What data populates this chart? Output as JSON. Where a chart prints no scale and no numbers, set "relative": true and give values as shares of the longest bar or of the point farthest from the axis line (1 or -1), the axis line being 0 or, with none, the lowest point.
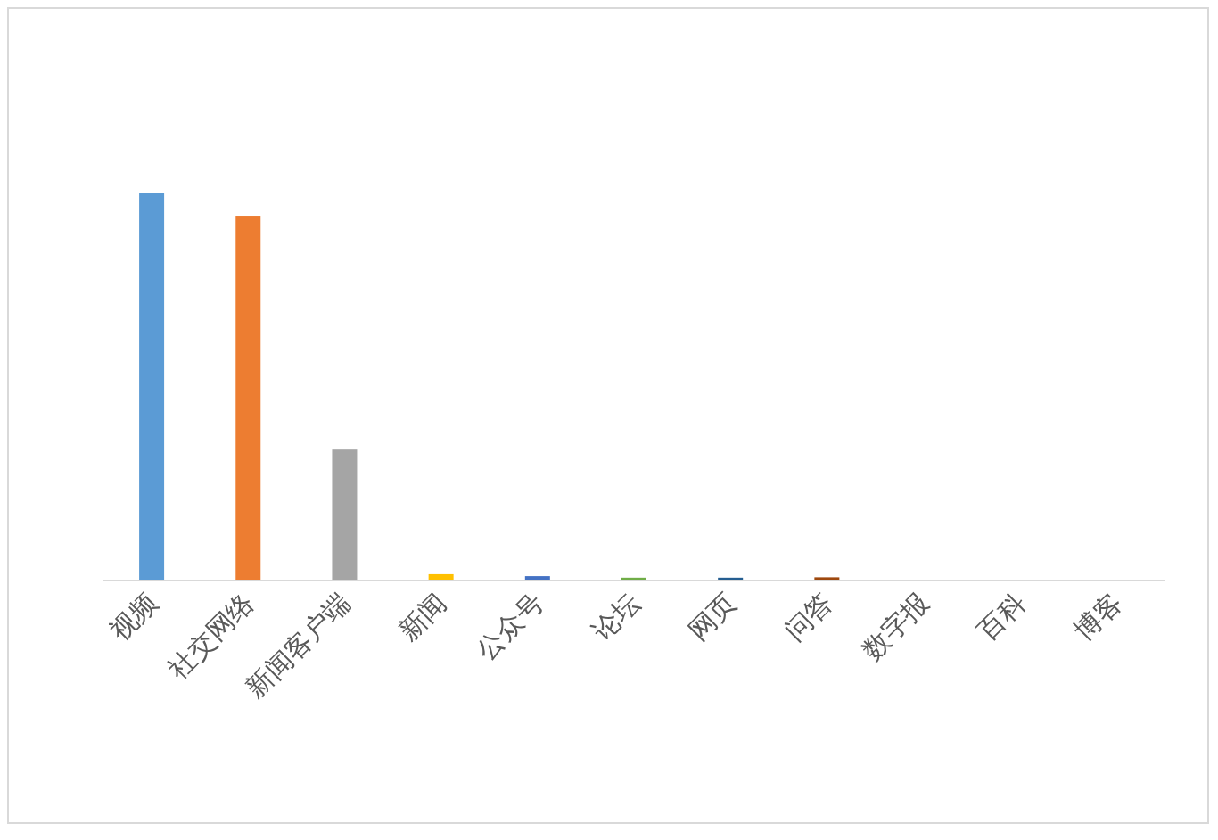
{
  "chart_data": {
    "type": "bar",
    "relative": true,
    "categories": [
      "视频",
      "社交网络",
      "新闻客户端",
      "新闻",
      "公众号",
      "论坛",
      "网页",
      "问答",
      "数字报",
      "百科",
      "博客"
    ],
    "values": [
      1,
      0.94,
      0.336,
      0.014,
      0.009,
      0.005,
      0.005,
      0.006,
      0,
      0,
      0
    ],
    "colors": [
      "#5b9bd5",
      "#ed7d31",
      "#a5a5a5",
      "#ffc000",
      "#4472c4",
      "#70ad47",
      "#255e91",
      "#9e480e",
      "#636363",
      "#997300",
      "#264478"
    ]
  }
}
